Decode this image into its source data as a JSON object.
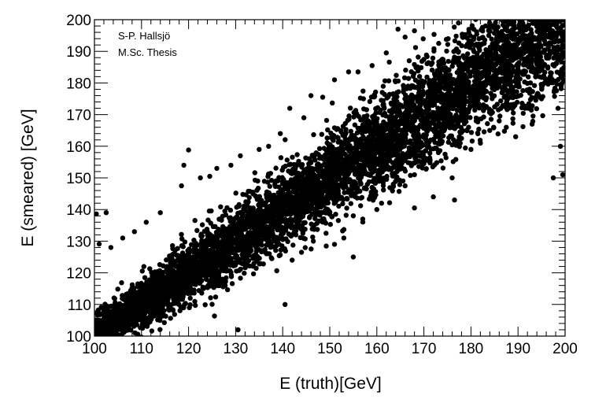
{
  "chart_data": {
    "type": "scatter",
    "title": "",
    "xlabel": "E (truth)[GeV]",
    "ylabel": "E (smeared) [GeV]",
    "xlim": [
      100,
      200
    ],
    "ylim": [
      100,
      200
    ],
    "xticks": [
      100,
      110,
      120,
      130,
      140,
      150,
      160,
      170,
      180,
      190,
      200
    ],
    "yticks": [
      100,
      110,
      120,
      130,
      140,
      150,
      160,
      170,
      180,
      190,
      200
    ],
    "grid": false,
    "marker_color": "#000000",
    "annotations": [
      "S-P. Hallsjö",
      "M.Sc. Thesis"
    ],
    "band": {
      "relation": "y ≈ x",
      "approx_spread_sigma": {
        "x": [
          100,
          150,
          200
        ],
        "y": [
          2.5,
          5.5,
          8.5
        ]
      },
      "approx_outer_extent": {
        "x": [
          100,
          125,
          150,
          175,
          200
        ],
        "upper": [
          138,
          158,
          180,
          200,
          200
        ],
        "lower": [
          100,
          100,
          130,
          155,
          173
        ]
      }
    },
    "series": [
      {
        "points": [
          [
            100.4,
            138.6
          ],
          [
            101.0,
            129.1
          ],
          [
            102.5,
            139.0
          ],
          [
            103.5,
            128.0
          ],
          [
            106.0,
            131.0
          ],
          [
            108.5,
            133.0
          ],
          [
            111.0,
            136.0
          ],
          [
            114.0,
            139.0
          ],
          [
            118.5,
            147.5
          ],
          [
            119.0,
            154.0
          ],
          [
            120.0,
            158.8
          ],
          [
            122.5,
            150.0
          ],
          [
            124.5,
            150.5
          ],
          [
            126.0,
            153.0
          ],
          [
            129.0,
            154.0
          ],
          [
            131.0,
            157.0
          ],
          [
            135.0,
            159.0
          ],
          [
            137.0,
            160.0
          ],
          [
            139.5,
            164.0
          ],
          [
            141.5,
            172.0
          ],
          [
            144.5,
            169.0
          ],
          [
            146.0,
            176.0
          ],
          [
            148.5,
            175.5
          ],
          [
            151.0,
            181.0
          ],
          [
            154.0,
            183.5
          ],
          [
            156.0,
            183.5
          ],
          [
            159.0,
            185.5
          ],
          [
            162.0,
            189.5
          ],
          [
            164.5,
            197.0
          ],
          [
            166.0,
            194.5
          ],
          [
            168.0,
            196.5
          ],
          [
            135.5,
            127.0
          ],
          [
            140.0,
            130.5
          ],
          [
            142.0,
            124.0
          ],
          [
            144.0,
            126.5
          ],
          [
            146.5,
            130.0
          ],
          [
            148.5,
            137.0
          ],
          [
            151.0,
            129.0
          ],
          [
            153.0,
            131.0
          ],
          [
            155.0,
            138.0
          ],
          [
            157.0,
            137.0
          ],
          [
            159.0,
            147.0
          ],
          [
            161.0,
            142.0
          ],
          [
            163.5,
            148.0
          ],
          [
            166.0,
            147.5
          ],
          [
            168.0,
            151.0
          ],
          [
            170.0,
            154.5
          ],
          [
            172.0,
            144.0
          ],
          [
            174.5,
            157.5
          ],
          [
            176.0,
            150.0
          ],
          [
            178.0,
            162.5
          ],
          [
            180.0,
            159.0
          ],
          [
            182.0,
            161.0
          ],
          [
            184.0,
            165.0
          ],
          [
            186.0,
            168.0
          ],
          [
            187.5,
            166.0
          ],
          [
            189.5,
            163.0
          ],
          [
            191.5,
            172.0
          ],
          [
            193.0,
            167.0
          ],
          [
            195.0,
            175.0
          ],
          [
            198.5,
            172.0
          ],
          [
            199.0,
            160.0
          ],
          [
            199.5,
            151.0
          ],
          [
            197.5,
            150.0
          ],
          [
            176.5,
            143.0
          ],
          [
            168.0,
            140.5
          ],
          [
            160.0,
            140.0
          ],
          [
            155.0,
            125.0
          ],
          [
            140.5,
            110.0
          ],
          [
            130.5,
            102.0
          ],
          [
            103.0,
            100.5
          ]
        ]
      }
    ]
  }
}
